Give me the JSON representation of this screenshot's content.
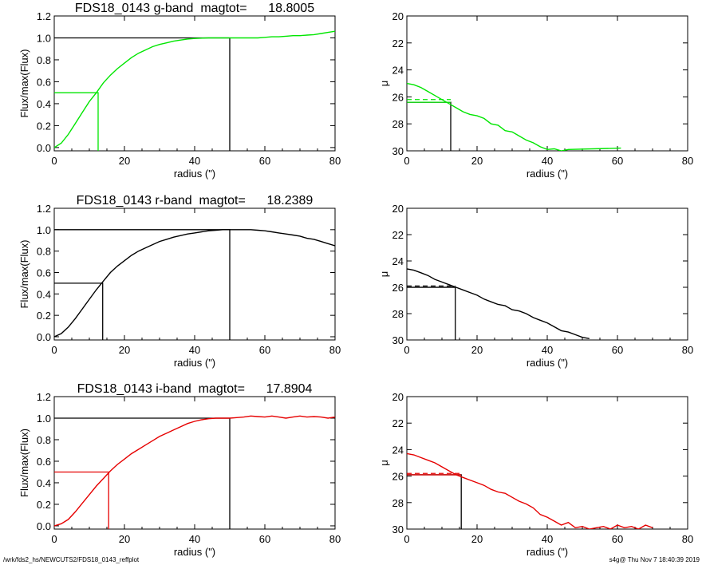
{
  "footer": {
    "left": "/wrk/fds2_hs/NEWCUTS2/FDS18_0143_reffplot",
    "right": "s4g@  Thu Nov  7 18:40:39 2019"
  },
  "chart_data": [
    {
      "type": "line",
      "title": "FDS18_0143 g-band  magtot=      18.8005",
      "xlabel": "radius (\")",
      "ylabel": "Flux/max(Flux)",
      "xlim": [
        0,
        80
      ],
      "ylim": [
        -0.03,
        1.2
      ],
      "xticks": [
        0,
        20,
        40,
        60,
        80
      ],
      "yticks": [
        0.0,
        0.2,
        0.4,
        0.6,
        0.8,
        1.0,
        1.2
      ],
      "color": "#00e600",
      "series": [
        {
          "x": [
            0,
            2,
            4,
            6,
            8,
            10,
            12,
            14,
            16,
            18,
            20,
            22,
            24,
            26,
            28,
            30,
            32,
            34,
            36,
            38,
            40,
            42,
            44,
            46,
            48,
            50,
            52,
            54,
            56,
            58,
            60,
            62,
            64,
            66,
            68,
            70,
            72,
            74,
            76,
            78,
            80
          ],
          "values": [
            0,
            0.04,
            0.12,
            0.22,
            0.32,
            0.42,
            0.5,
            0.59,
            0.66,
            0.72,
            0.77,
            0.82,
            0.86,
            0.89,
            0.92,
            0.94,
            0.955,
            0.97,
            0.98,
            0.99,
            0.995,
            0.998,
            1.0,
            1.0,
            1.0,
            1.0,
            1.0,
            1.0,
            1.0,
            1.0,
            1.005,
            1.01,
            1.01,
            1.015,
            1.02,
            1.02,
            1.025,
            1.03,
            1.04,
            1.05,
            1.06
          ]
        }
      ],
      "reference_lines": {
        "total_radius": 50,
        "half_radius": 12.5,
        "half_level": 0.5
      }
    },
    {
      "type": "line",
      "xlabel": "radius (\")",
      "ylabel": "μ",
      "xlim": [
        0,
        80
      ],
      "ylim": [
        30,
        20
      ],
      "xticks": [
        0,
        20,
        40,
        60,
        80
      ],
      "yticks": [
        20,
        22,
        24,
        26,
        28,
        30
      ],
      "color": "#00e600",
      "series": [
        {
          "x": [
            0,
            2,
            4,
            6,
            8,
            10,
            12,
            14,
            16,
            18,
            20,
            22,
            24,
            26,
            28,
            30,
            32,
            34,
            36,
            38,
            40,
            42,
            44,
            46,
            61
          ],
          "values": [
            25.0,
            25.1,
            25.3,
            25.6,
            25.9,
            26.2,
            26.5,
            26.8,
            27.1,
            27.3,
            27.4,
            27.6,
            28.0,
            28.1,
            28.5,
            28.6,
            28.9,
            29.2,
            29.4,
            29.7,
            29.9,
            29.85,
            30.0,
            29.9,
            29.8
          ]
        }
      ],
      "reference_lines": {
        "half_radius": 12.5,
        "mu_eff": 26.4,
        "mu_mean": 26.2
      }
    },
    {
      "type": "line",
      "title": "FDS18_0143 r-band  magtot=      18.2389",
      "xlabel": "radius (\")",
      "ylabel": "Flux/max(Flux)",
      "xlim": [
        0,
        80
      ],
      "ylim": [
        -0.03,
        1.2
      ],
      "xticks": [
        0,
        20,
        40,
        60,
        80
      ],
      "yticks": [
        0.0,
        0.2,
        0.4,
        0.6,
        0.8,
        1.0,
        1.2
      ],
      "color": "#000000",
      "series": [
        {
          "x": [
            0,
            2,
            4,
            6,
            8,
            10,
            12,
            14,
            16,
            18,
            20,
            22,
            24,
            26,
            28,
            30,
            32,
            34,
            36,
            38,
            40,
            42,
            44,
            46,
            48,
            50,
            52,
            54,
            56,
            58,
            60,
            62,
            64,
            66,
            68,
            70,
            72,
            74,
            76,
            78,
            80
          ],
          "values": [
            0,
            0.03,
            0.09,
            0.17,
            0.26,
            0.35,
            0.44,
            0.52,
            0.6,
            0.66,
            0.71,
            0.76,
            0.8,
            0.83,
            0.86,
            0.89,
            0.91,
            0.93,
            0.945,
            0.96,
            0.97,
            0.98,
            0.99,
            0.995,
            1.0,
            1.0,
            1.0,
            1.0,
            1.0,
            0.995,
            0.99,
            0.98,
            0.97,
            0.96,
            0.95,
            0.94,
            0.92,
            0.91,
            0.89,
            0.87,
            0.85
          ]
        }
      ],
      "reference_lines": {
        "total_radius": 50,
        "half_radius": 13.8,
        "half_level": 0.5
      }
    },
    {
      "type": "line",
      "xlabel": "radius (\")",
      "ylabel": "μ",
      "xlim": [
        0,
        80
      ],
      "ylim": [
        30,
        20
      ],
      "xticks": [
        0,
        20,
        40,
        60,
        80
      ],
      "yticks": [
        20,
        22,
        24,
        26,
        28,
        30
      ],
      "color": "#000000",
      "series": [
        {
          "x": [
            0,
            2,
            4,
            6,
            8,
            10,
            12,
            14,
            16,
            18,
            20,
            22,
            24,
            26,
            28,
            30,
            32,
            34,
            36,
            38,
            40,
            42,
            44,
            46,
            48,
            50,
            52
          ],
          "values": [
            24.6,
            24.7,
            24.9,
            25.1,
            25.4,
            25.6,
            25.8,
            26.0,
            26.2,
            26.4,
            26.6,
            26.9,
            27.1,
            27.3,
            27.4,
            27.7,
            27.8,
            28.0,
            28.3,
            28.5,
            28.7,
            29.0,
            29.3,
            29.4,
            29.6,
            29.8,
            29.9
          ]
        }
      ],
      "reference_lines": {
        "half_radius": 13.8,
        "mu_eff": 26.0,
        "mu_mean": 25.9
      }
    },
    {
      "type": "line",
      "title": "FDS18_0143 i-band  magtot=      17.8904",
      "xlabel": "radius (\")",
      "ylabel": "Flux/max(Flux)",
      "xlim": [
        0,
        80
      ],
      "ylim": [
        -0.03,
        1.2
      ],
      "xticks": [
        0,
        20,
        40,
        60,
        80
      ],
      "yticks": [
        0.0,
        0.2,
        0.4,
        0.6,
        0.8,
        1.0,
        1.2
      ],
      "color": "#e60000",
      "series": [
        {
          "x": [
            0,
            2,
            4,
            6,
            8,
            10,
            12,
            14,
            16,
            18,
            20,
            22,
            24,
            26,
            28,
            30,
            32,
            34,
            36,
            38,
            40,
            42,
            44,
            46,
            48,
            50,
            52,
            54,
            56,
            58,
            60,
            62,
            64,
            66,
            68,
            70,
            72,
            74,
            76,
            78,
            80
          ],
          "values": [
            0,
            0.02,
            0.06,
            0.13,
            0.21,
            0.29,
            0.37,
            0.44,
            0.51,
            0.57,
            0.62,
            0.67,
            0.71,
            0.75,
            0.79,
            0.83,
            0.86,
            0.89,
            0.92,
            0.95,
            0.97,
            0.985,
            0.995,
            1.0,
            1.0,
            1.0,
            1.005,
            1.01,
            1.02,
            1.015,
            1.01,
            1.02,
            1.01,
            1.0,
            1.01,
            1.02,
            1.01,
            1.015,
            1.01,
            1.0,
            1.01
          ]
        }
      ],
      "reference_lines": {
        "total_radius": 50,
        "half_radius": 15.5,
        "half_level": 0.5
      }
    },
    {
      "type": "line",
      "xlabel": "radius (\")",
      "ylabel": "μ",
      "xlim": [
        0,
        80
      ],
      "ylim": [
        30,
        20
      ],
      "xticks": [
        0,
        20,
        40,
        60,
        80
      ],
      "yticks": [
        20,
        22,
        24,
        26,
        28,
        30
      ],
      "color": "#e60000",
      "series": [
        {
          "x": [
            0,
            2,
            4,
            6,
            8,
            10,
            12,
            14,
            16,
            18,
            20,
            22,
            24,
            26,
            28,
            30,
            32,
            34,
            36,
            38,
            40,
            42,
            44,
            46,
            48,
            50,
            52,
            54,
            56,
            58,
            60,
            62,
            64,
            66,
            68,
            70
          ],
          "values": [
            24.3,
            24.4,
            24.6,
            24.8,
            25.0,
            25.3,
            25.6,
            25.9,
            26.1,
            26.3,
            26.5,
            26.7,
            27.0,
            27.2,
            27.3,
            27.6,
            27.9,
            28.1,
            28.4,
            28.9,
            29.1,
            29.4,
            29.7,
            29.5,
            29.9,
            29.8,
            30.0,
            29.9,
            29.8,
            30.0,
            29.7,
            29.9,
            29.8,
            30.0,
            29.7,
            29.9
          ]
        }
      ],
      "reference_lines": {
        "half_radius": 15.5,
        "mu_eff": 25.9,
        "mu_mean": 25.8
      }
    }
  ]
}
